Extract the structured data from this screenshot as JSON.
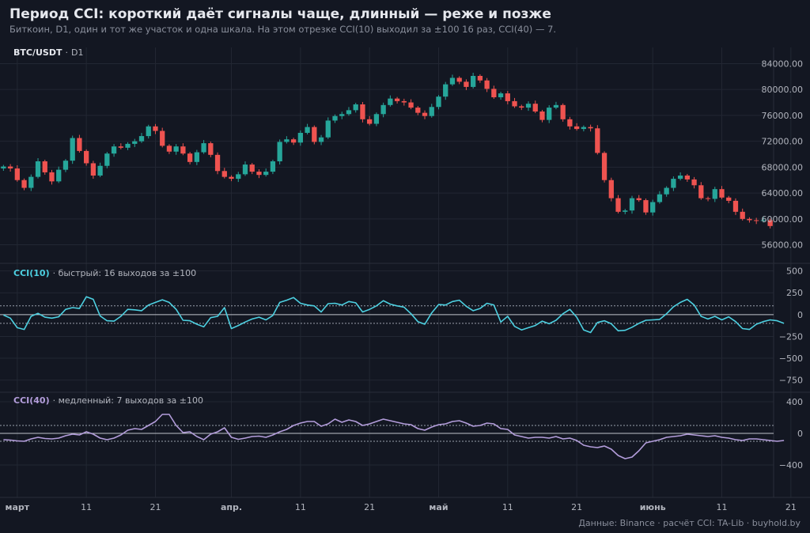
{
  "title": "Период CCI: короткий даёт сигналы чаще, длинный — реже и позже",
  "subtitle": "Биткоин, D1, один и тот же участок и одна шкала. На этом отрезке CCI(10) выходил за ±100 16 раз, CCI(40) — 7.",
  "footer": "Данные: Binance · расчёт CCI: TA-Lib · buyhold.by",
  "colors": {
    "background": "#131722",
    "up": "#26a69a",
    "down": "#ef5350",
    "cci_fast": "#4dd0e1",
    "cci_slow": "#b39ddb",
    "grid": "#222733"
  },
  "chart_data": [
    {
      "type": "candlestick",
      "label_symbol": "BTC/USDT",
      "label_timeframe": "D1",
      "y_ticks": [
        "56000.00",
        "60000.00",
        "64000.00",
        "68000.00",
        "72000.00",
        "76000.00",
        "80000.00",
        "84000.00"
      ],
      "ylim": [
        53500,
        86500
      ],
      "x_ticks": [
        "март",
        "11",
        "21",
        "апр.",
        "11",
        "21",
        "май",
        "11",
        "21",
        "июнь",
        "11",
        "21"
      ],
      "x_tick_days": [
        2,
        12,
        22,
        33,
        43,
        53,
        63,
        73,
        83,
        94,
        104,
        114
      ],
      "close": [
        68100,
        67800,
        66000,
        64800,
        66500,
        68900,
        67200,
        65800,
        67600,
        69000,
        72500,
        70500,
        68600,
        66700,
        68200,
        70100,
        71200,
        71000,
        71600,
        72000,
        72800,
        74300,
        73600,
        71300,
        70400,
        71200,
        70100,
        68800,
        70300,
        71700,
        69900,
        67400,
        66500,
        66200,
        66900,
        68400,
        67300,
        66800,
        67300,
        68900,
        71900,
        72300,
        71800,
        73300,
        74200,
        71900,
        72600,
        75200,
        75900,
        76200,
        76800,
        77700,
        75400,
        74700,
        76200,
        77600,
        78600,
        78200,
        78000,
        77200,
        76400,
        75900,
        77300,
        78900,
        80800,
        81800,
        81200,
        80400,
        82100,
        81400,
        80100,
        78800,
        79400,
        78200,
        77400,
        77200,
        77800,
        76600,
        75300,
        77200,
        77600,
        75400,
        74300,
        73900,
        74200,
        74000,
        70200,
        66000,
        63200,
        61100,
        61300,
        63200,
        62900,
        61000,
        62600,
        63800,
        64800,
        66200,
        66700,
        66100,
        65200,
        63200,
        63100,
        64600,
        63300,
        62800,
        61100,
        60000,
        59800,
        59700,
        59800,
        58900
      ],
      "series": [
        {
          "name": "CCI(10)",
          "label_suffix": "· быстрый: 16 выходов за ±100",
          "y_ticks": [
            "500",
            "250",
            "0",
            "−250",
            "−500",
            "−750"
          ],
          "ylim": [
            -880,
            560
          ],
          "levels": [
            100,
            -100
          ],
          "values": [
            -5,
            -40,
            -150,
            -170,
            -20,
            15,
            -30,
            -40,
            -25,
            60,
            80,
            70,
            205,
            175,
            -15,
            -70,
            -75,
            -20,
            60,
            55,
            45,
            110,
            140,
            170,
            140,
            60,
            -65,
            -70,
            -110,
            -140,
            -35,
            -20,
            80,
            -160,
            -125,
            -85,
            -50,
            -30,
            -60,
            -10,
            140,
            165,
            195,
            130,
            110,
            100,
            30,
            125,
            130,
            110,
            150,
            135,
            30,
            60,
            100,
            160,
            120,
            100,
            85,
            10,
            -80,
            -110,
            20,
            115,
            110,
            150,
            165,
            95,
            45,
            70,
            130,
            110,
            -85,
            -20,
            -135,
            -175,
            -150,
            -125,
            -75,
            -105,
            -65,
            10,
            60,
            -30,
            -175,
            -205,
            -90,
            -70,
            -105,
            -185,
            -180,
            -145,
            -100,
            -65,
            -60,
            -55,
            10,
            90,
            140,
            175,
            110,
            -20,
            -50,
            -20,
            -60,
            -25,
            -80,
            -160,
            -170,
            -110,
            -80,
            -60,
            -70,
            -100
          ]
        },
        {
          "name": "CCI(40)",
          "label_suffix": "· медленный: 7 выходов за ±100",
          "y_ticks": [
            "400",
            "0",
            "−400"
          ],
          "ylim": [
            -810,
            510
          ],
          "levels": [
            100,
            -100
          ],
          "values": [
            -80,
            -85,
            -95,
            -100,
            -70,
            -50,
            -65,
            -70,
            -60,
            -30,
            -10,
            -20,
            20,
            -10,
            -60,
            -80,
            -60,
            -20,
            40,
            60,
            50,
            100,
            150,
            240,
            240,
            100,
            10,
            20,
            -40,
            -80,
            -10,
            20,
            70,
            -50,
            -75,
            -60,
            -40,
            -35,
            -50,
            -20,
            20,
            50,
            100,
            130,
            150,
            150,
            90,
            120,
            180,
            140,
            170,
            150,
            100,
            120,
            150,
            180,
            160,
            140,
            120,
            110,
            60,
            40,
            80,
            110,
            120,
            150,
            160,
            130,
            90,
            100,
            130,
            120,
            60,
            50,
            -20,
            -40,
            -60,
            -50,
            -50,
            -60,
            -40,
            -70,
            -60,
            -90,
            -150,
            -170,
            -180,
            -160,
            -200,
            -280,
            -320,
            -300,
            -220,
            -120,
            -100,
            -80,
            -50,
            -40,
            -30,
            -10,
            -20,
            -30,
            -40,
            -30,
            -50,
            -60,
            -80,
            -90,
            -70,
            -70,
            -80,
            -90,
            -100,
            -90
          ]
        }
      ]
    }
  ]
}
